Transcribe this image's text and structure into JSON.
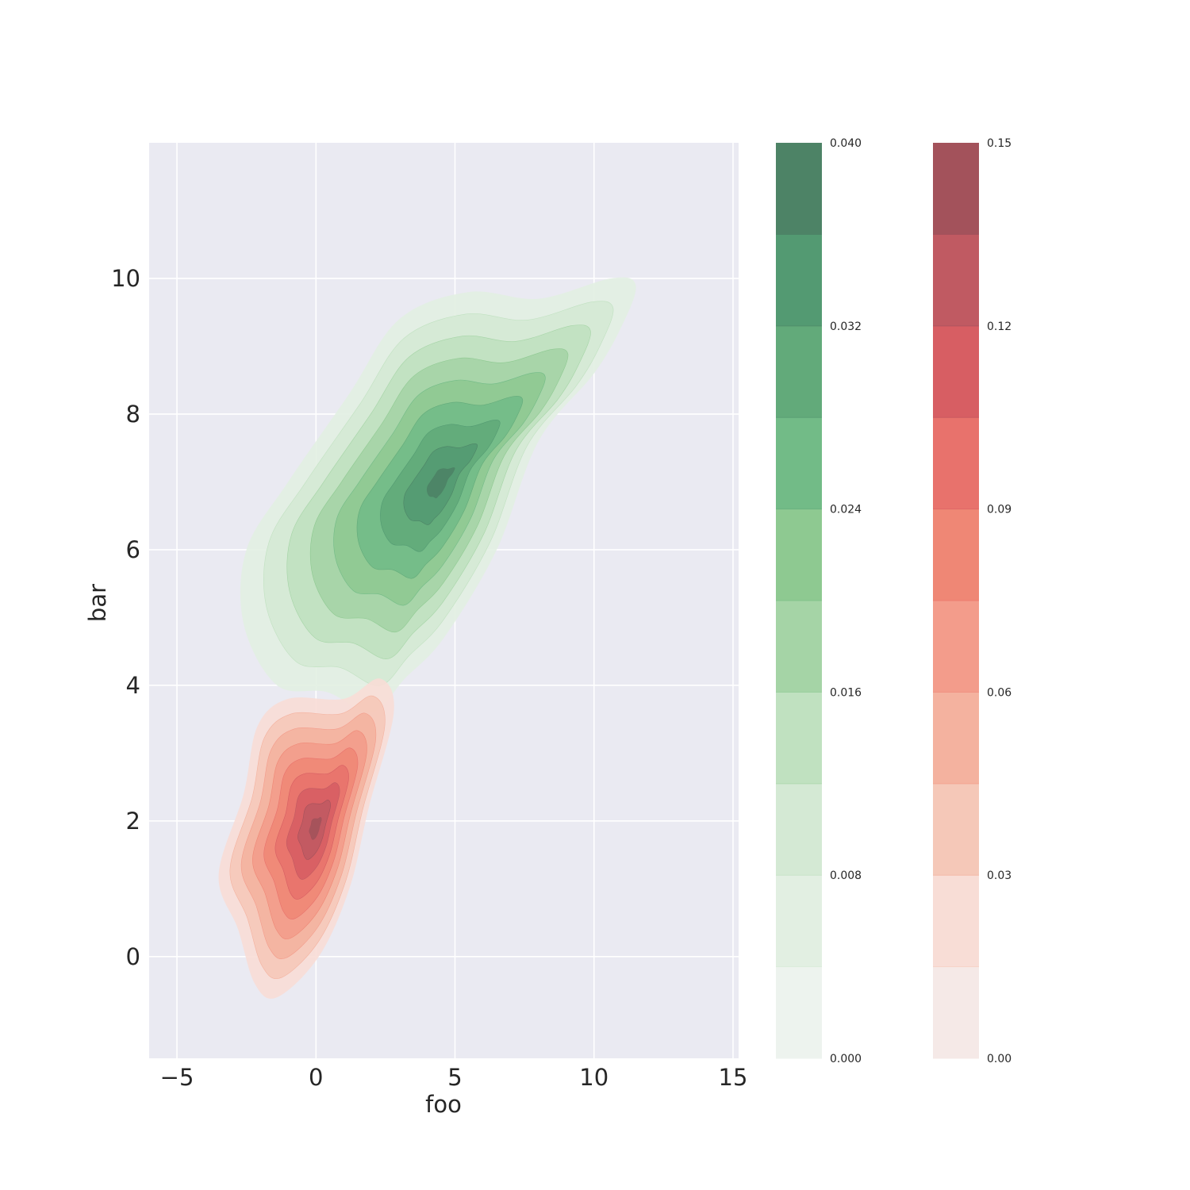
{
  "chart_data": {
    "type": "kde_contour",
    "xlabel": "foo",
    "ylabel": "bar",
    "xlim": [
      -6,
      15.2
    ],
    "ylim": [
      -1.5,
      12
    ],
    "xticks": [
      -5,
      0,
      5,
      10,
      15
    ],
    "xtick_labels": [
      "−5",
      "0",
      "5",
      "10",
      "15"
    ],
    "yticks": [
      0,
      2,
      4,
      6,
      8,
      10
    ],
    "ytick_labels": [
      "0",
      "2",
      "4",
      "6",
      "8",
      "10"
    ],
    "grid": true,
    "background": "#eaeaf2",
    "series": [
      {
        "colormap": "Greens",
        "peak": {
          "x": 4.5,
          "y": 7.0
        },
        "contour_levels": [
          0.004,
          0.008,
          0.012,
          0.016,
          0.02,
          0.024,
          0.028,
          0.032,
          0.036
        ],
        "colorbar": {
          "range": [
            0.0,
            0.04
          ],
          "ticks": [
            "0.000",
            "0.008",
            "0.016",
            "0.024",
            "0.032",
            "0.040"
          ],
          "band_colors": [
            "#edf3ee",
            "#e2efe2",
            "#d4e9d4",
            "#c0e1c0",
            "#a5d4a6",
            "#8ec991",
            "#72bb87",
            "#62aa7a",
            "#539a72",
            "#4d8366"
          ]
        }
      },
      {
        "colormap": "Reds",
        "peak": {
          "x": 0.0,
          "y": 1.9
        },
        "contour_levels": [
          0.015,
          0.03,
          0.045,
          0.06,
          0.075,
          0.09,
          0.105,
          0.12,
          0.135
        ],
        "colorbar": {
          "range": [
            0.0,
            0.15
          ],
          "ticks": [
            "0.00",
            "0.03",
            "0.06",
            "0.09",
            "0.12",
            "0.15"
          ],
          "band_colors": [
            "#f5e9e7",
            "#f8ddd6",
            "#f5c8b8",
            "#f4b29f",
            "#f39c8b",
            "#ef8775",
            "#e8726c",
            "#d75e63",
            "#c05a62",
            "#a3525b"
          ]
        }
      }
    ]
  }
}
